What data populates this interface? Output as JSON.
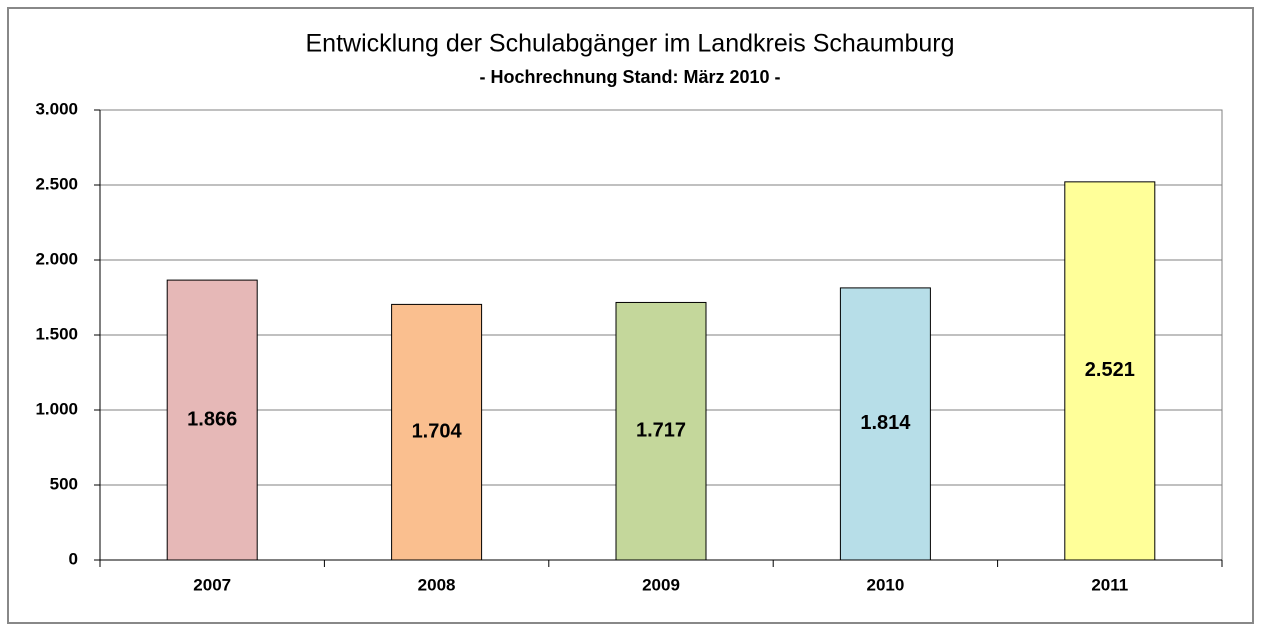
{
  "chart_data": {
    "type": "bar",
    "title": "Entwicklung der Schulabgänger im Landkreis Schaumburg",
    "subtitle": "- Hochrechnung Stand: März 2010 -",
    "categories": [
      "2007",
      "2008",
      "2009",
      "2010",
      "2011"
    ],
    "values": [
      1866,
      1704,
      1717,
      1814,
      2521
    ],
    "value_labels": [
      "1.866",
      "1.704",
      "1.717",
      "1.814",
      "2.521"
    ],
    "colors": [
      "#e6b8b7",
      "#fabf8f",
      "#c4d79b",
      "#b7dee8",
      "#ffff99"
    ],
    "ylim": [
      0,
      3000
    ],
    "yticks": [
      0,
      500,
      {
        "value": 1000,
        "label": "1.000"
      },
      {
        "value": 1500,
        "label": "1.500"
      },
      {
        "value": 2000,
        "label": "2.000"
      },
      {
        "value": 2500,
        "label": "2.500"
      },
      {
        "value": 3000,
        "label": "3.000"
      }
    ],
    "grid": true
  }
}
